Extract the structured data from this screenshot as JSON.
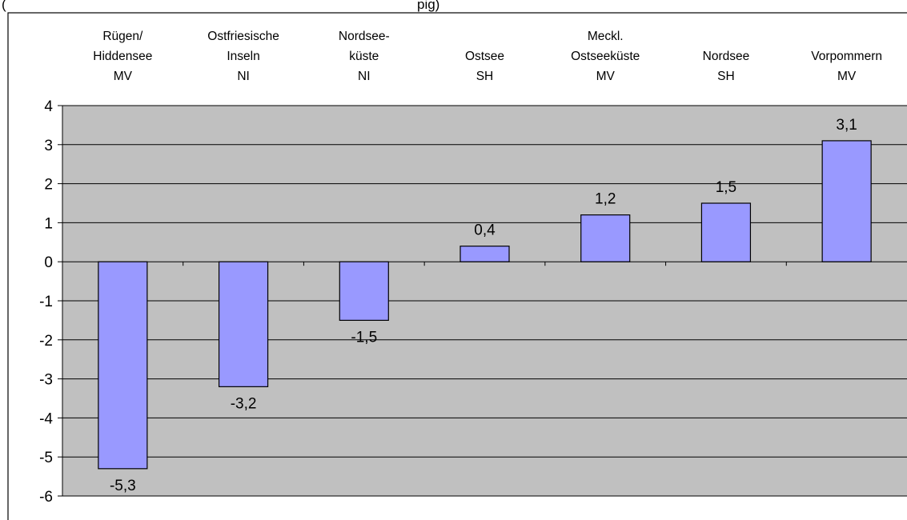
{
  "header_fragment": "(",
  "header_fragment_right": "pig)",
  "chart_data": {
    "type": "bar",
    "categories": [
      [
        "Rügen/",
        "Hiddensee",
        "MV"
      ],
      [
        "Ostfriesische",
        "Inseln",
        "NI"
      ],
      [
        "Nordsee-",
        "küste",
        "NI"
      ],
      [
        "",
        "Ostsee",
        "SH"
      ],
      [
        "Meckl.",
        "Ostseeküste",
        "MV"
      ],
      [
        "",
        "Nordsee",
        "SH"
      ],
      [
        "",
        "Vorpommern",
        "MV"
      ]
    ],
    "values": [
      -5.3,
      -3.2,
      -1.5,
      0.4,
      1.2,
      1.5,
      3.1
    ],
    "data_labels": [
      "-5,3",
      "-3,2",
      "-1,5",
      "0,4",
      "1,2",
      "1,5",
      "3,1"
    ],
    "y_ticks": [
      "4",
      "3",
      "2",
      "1",
      "0",
      "-1",
      "-2",
      "-3",
      "-4",
      "-5",
      "-6"
    ],
    "ylim": [
      -6,
      4
    ],
    "grid": true,
    "category_labels_position": "top",
    "colors": {
      "bar_fill": "#9999ff",
      "bar_stroke": "#000000",
      "plot_background": "#c0c0c0",
      "gridline": "#000000"
    }
  }
}
